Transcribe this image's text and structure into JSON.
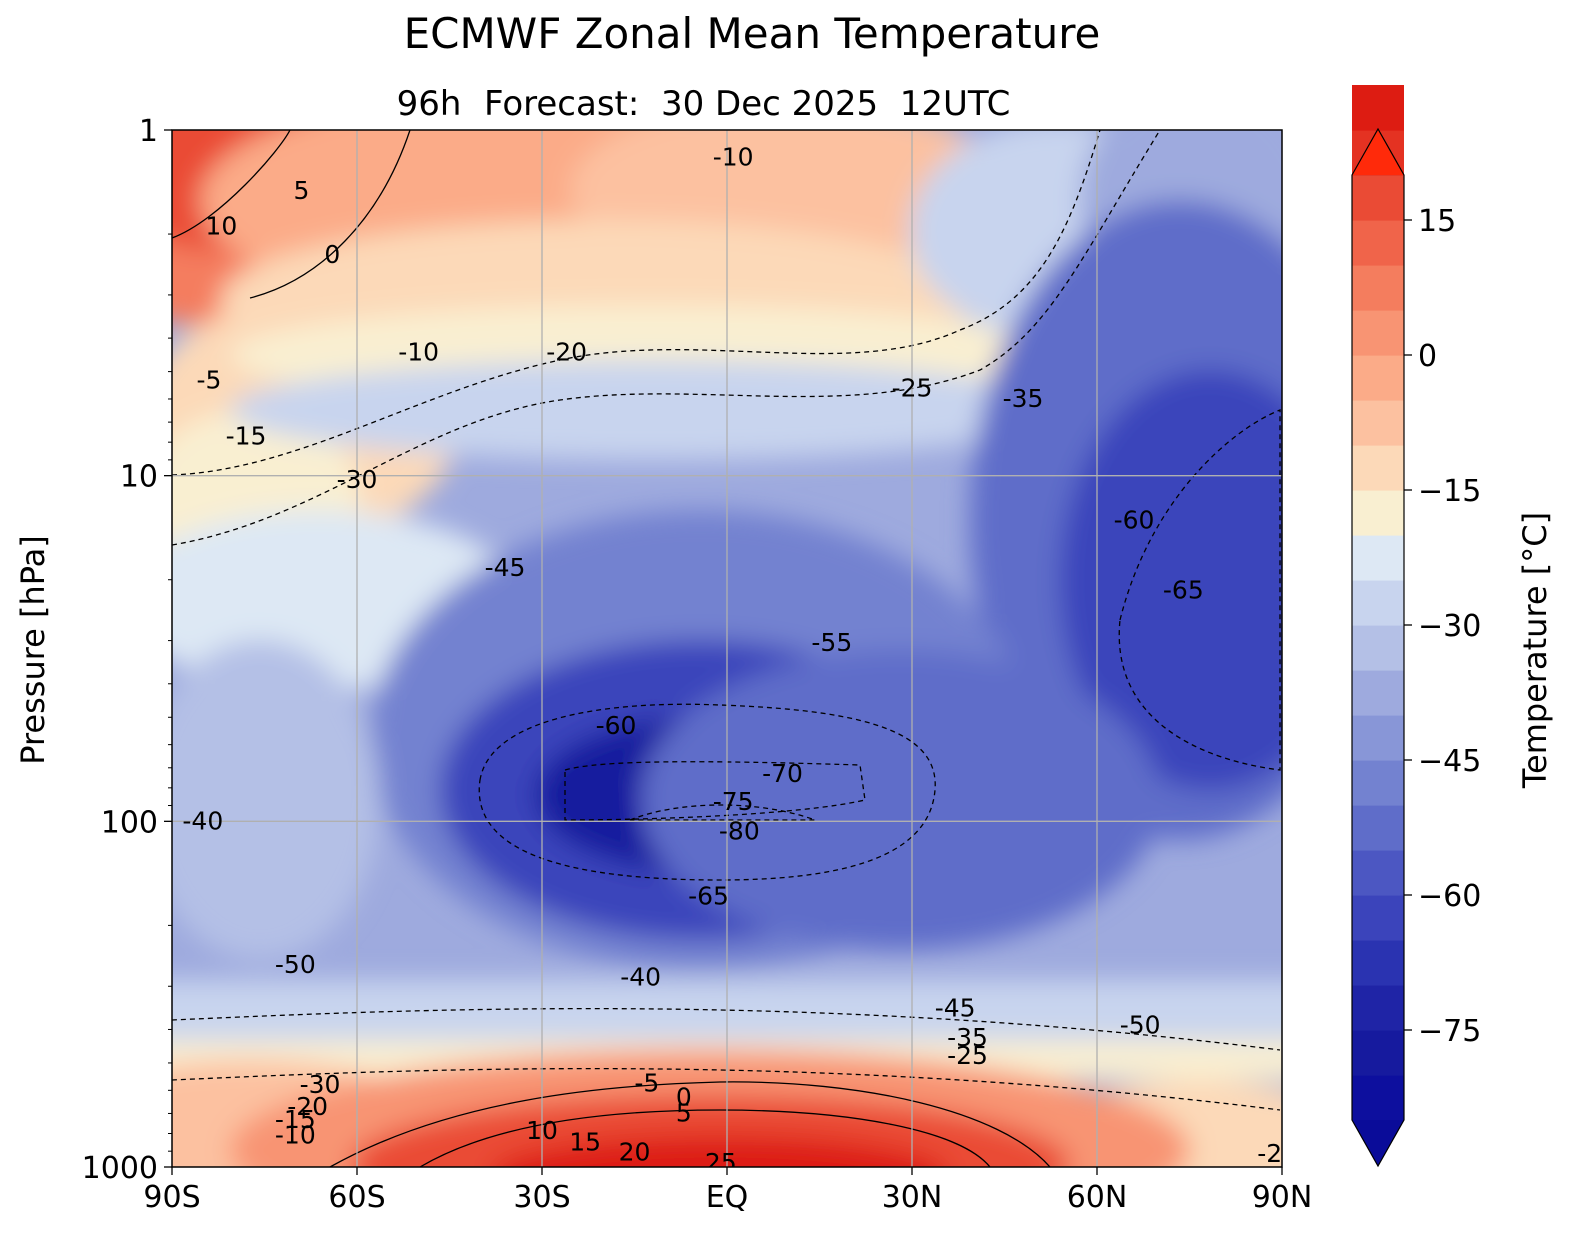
{
  "chart_data": {
    "type": "contour",
    "title": "ECMWF Zonal Mean Temperature",
    "subtitle": {
      "lead_time": "96h",
      "label": "Forecast:  30 Dec 2025  12UTC"
    },
    "xlabel": "",
    "ylabel": "Pressure [hPa]",
    "x_ticks": [
      "90S",
      "60S",
      "30S",
      "EQ",
      "30N",
      "60N",
      "90N"
    ],
    "x_range": [
      -90,
      90
    ],
    "y_scale": "log",
    "y_range": [
      1000,
      1
    ],
    "y_ticks": [
      "1",
      "10",
      "100",
      "1000"
    ],
    "grid": true,
    "colorbar": {
      "label": "Temperature [°C]",
      "min": -85,
      "max": 20,
      "step": 5,
      "extend": "both",
      "ticks": [
        "15",
        "0",
        "−15",
        "−30",
        "−45",
        "−60",
        "−75"
      ],
      "colors": [
        "#0d0f9e",
        "#161a9e",
        "#1f24a6",
        "#2a33b1",
        "#3b44bb",
        "#4c57c2",
        "#5f6dc9",
        "#7382d0",
        "#8896d7",
        "#9eaade",
        "#b4c0e6",
        "#c8d4ee",
        "#dde8f4",
        "#f9efd1",
        "#fcd9b8",
        "#fcc1a0",
        "#fbab88",
        "#f89473",
        "#f47d5e",
        "#f0644a",
        "#ea4b35",
        "#e43222",
        "#dd1c12"
      ],
      "extend_low_color": "#0a0c99",
      "extend_high_color": "#ff2a0a"
    },
    "contour_labels": [
      {
        "text": "10",
        "lat": -82,
        "p": 1.9
      },
      {
        "text": "5",
        "lat": -69,
        "p": 1.5
      },
      {
        "text": "0",
        "lat": -64,
        "p": 2.3
      },
      {
        "text": "-5",
        "lat": -84,
        "p": 5.3
      },
      {
        "text": "-10",
        "lat": -50,
        "p": 4.4
      },
      {
        "text": "-15",
        "lat": -78,
        "p": 7.7
      },
      {
        "text": "-20",
        "lat": -26,
        "p": 4.4
      },
      {
        "text": "-10",
        "lat": 1,
        "p": 1.2
      },
      {
        "text": "-25",
        "lat": 30,
        "p": 5.6
      },
      {
        "text": "-35",
        "lat": 48,
        "p": 6.0
      },
      {
        "text": "-30",
        "lat": -60,
        "p": 10.3
      },
      {
        "text": "-45",
        "lat": -36,
        "p": 18.5
      },
      {
        "text": "-55",
        "lat": 17,
        "p": 30.5
      },
      {
        "text": "-60",
        "lat": 66,
        "p": 13.5
      },
      {
        "text": "-65",
        "lat": 74,
        "p": 21.5
      },
      {
        "text": "-60",
        "lat": -18,
        "p": 53
      },
      {
        "text": "-70",
        "lat": 9,
        "p": 73
      },
      {
        "text": "-75",
        "lat": 1,
        "p": 88
      },
      {
        "text": "-80",
        "lat": 2,
        "p": 107
      },
      {
        "text": "-65",
        "lat": -3,
        "p": 165
      },
      {
        "text": "-40",
        "lat": -85,
        "p": 100
      },
      {
        "text": "-50",
        "lat": -70,
        "p": 260
      },
      {
        "text": "-40",
        "lat": -14,
        "p": 283
      },
      {
        "text": "-45",
        "lat": 37,
        "p": 348
      },
      {
        "text": "-35",
        "lat": 39,
        "p": 423
      },
      {
        "text": "-25",
        "lat": 39,
        "p": 478
      },
      {
        "text": "-50",
        "lat": 67,
        "p": 390
      },
      {
        "text": "-30",
        "lat": -66,
        "p": 580
      },
      {
        "text": "-20",
        "lat": -68,
        "p": 670
      },
      {
        "text": "-15",
        "lat": -70,
        "p": 730
      },
      {
        "text": "-10",
        "lat": -70,
        "p": 810
      },
      {
        "text": "-5",
        "lat": -13,
        "p": 573
      },
      {
        "text": "0",
        "lat": -7,
        "p": 630
      },
      {
        "text": "5",
        "lat": -7,
        "p": 700
      },
      {
        "text": "10",
        "lat": -30,
        "p": 787
      },
      {
        "text": "15",
        "lat": -23,
        "p": 850
      },
      {
        "text": "20",
        "lat": -15,
        "p": 907
      },
      {
        "text": "25",
        "lat": -1,
        "p": 975
      },
      {
        "text": "-2",
        "lat": 88,
        "p": 918
      }
    ]
  }
}
